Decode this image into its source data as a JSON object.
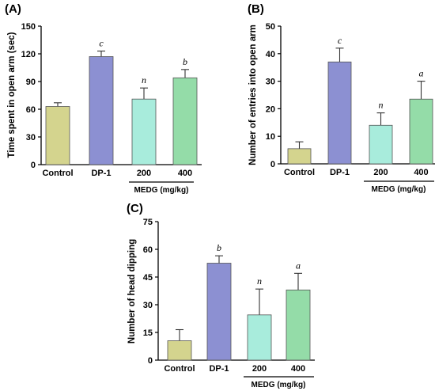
{
  "colors": {
    "Control": "#d4d48e",
    "DP-1": "#8c90d2",
    "200": "#a8ecdc",
    "400": "#94dca8"
  },
  "chart_data": [
    {
      "type": "bar",
      "panel": "(A)",
      "ylabel": "Time spent in open arm (sec)",
      "categories": [
        "Control",
        "DP-1",
        "200",
        "400"
      ],
      "values": [
        63,
        117,
        71,
        94
      ],
      "errors": [
        4,
        6,
        12,
        9
      ],
      "significance": [
        "",
        "c",
        "n",
        "b"
      ],
      "group_label": "MEDG (mg/kg)",
      "group_categories": [
        "200",
        "400"
      ],
      "ylim": [
        0,
        150
      ],
      "yticks": [
        "0",
        "30",
        "60",
        "90",
        "120",
        "150"
      ]
    },
    {
      "type": "bar",
      "panel": "(B)",
      "ylabel": "Number of entries into open arm",
      "categories": [
        "Control",
        "DP-1",
        "200",
        "400"
      ],
      "values": [
        5.5,
        37,
        14,
        23.5
      ],
      "errors": [
        2.5,
        5,
        4.5,
        6.5
      ],
      "significance": [
        "",
        "c",
        "n",
        "a"
      ],
      "group_label": "MEDG (mg/kg)",
      "group_categories": [
        "200",
        "400"
      ],
      "ylim": [
        0,
        50
      ],
      "yticks": [
        "0",
        "10",
        "20",
        "30",
        "40",
        "50"
      ]
    },
    {
      "type": "bar",
      "panel": "(C)",
      "ylabel": "Number of head dipping",
      "categories": [
        "Control",
        "DP-1",
        "200",
        "400"
      ],
      "values": [
        10.5,
        52.5,
        24.5,
        38
      ],
      "errors": [
        6,
        4,
        14,
        9
      ],
      "significance": [
        "",
        "b",
        "n",
        "a"
      ],
      "group_label": "MEDG (mg/kg)",
      "group_categories": [
        "200",
        "400"
      ],
      "ylim": [
        0,
        75
      ],
      "yticks": [
        "0",
        "15",
        "30",
        "45",
        "60",
        "75"
      ]
    }
  ]
}
